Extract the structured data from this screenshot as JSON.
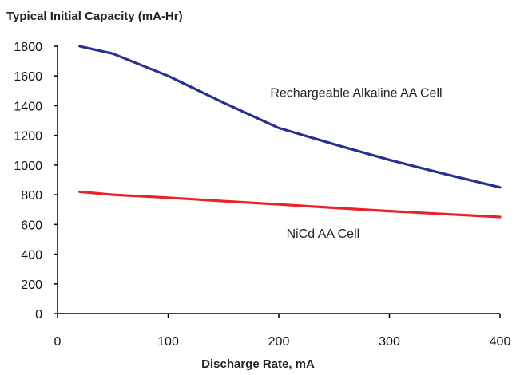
{
  "chart_data": {
    "type": "line",
    "title": "Typical Initial Capacity (mA-Hr)",
    "xlabel": "Discharge Rate, mA",
    "ylabel": "",
    "xlim": [
      0,
      400
    ],
    "ylim": [
      0,
      1800
    ],
    "x_ticks": [
      0,
      100,
      200,
      300,
      400
    ],
    "y_ticks": [
      0,
      200,
      400,
      600,
      800,
      1000,
      1200,
      1400,
      1600,
      1800
    ],
    "grid": false,
    "series": [
      {
        "name": "Rechargeable Alkaline AA Cell",
        "color": "#2b2f8f",
        "x": [
          20,
          50,
          100,
          150,
          200,
          250,
          300,
          350,
          400
        ],
        "y": [
          1800,
          1750,
          1600,
          1420,
          1250,
          1140,
          1035,
          940,
          850
        ]
      },
      {
        "name": "NiCd AA Cell",
        "color": "#e8232a",
        "x": [
          20,
          50,
          100,
          150,
          200,
          250,
          300,
          350,
          400
        ],
        "y": [
          820,
          800,
          780,
          757,
          735,
          712,
          690,
          670,
          650
        ]
      }
    ],
    "annotations": [
      {
        "text": "Rechargeable Alkaline AA Cell",
        "x": 270,
        "y": 1460
      },
      {
        "text": "NiCd AA Cell",
        "x": 240,
        "y": 510
      }
    ]
  }
}
